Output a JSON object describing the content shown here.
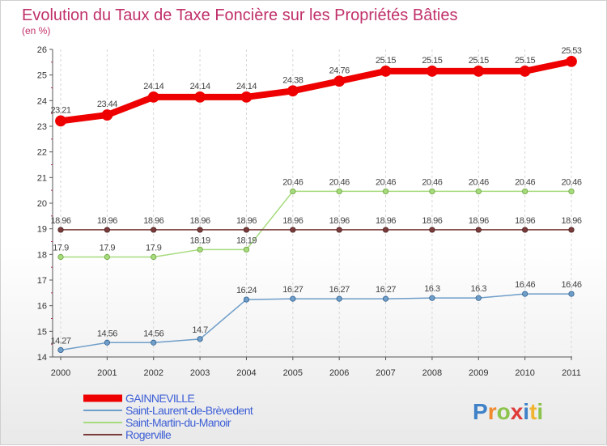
{
  "chart_data": {
    "type": "line",
    "title": "Evolution du Taux de Taxe Foncière sur les Propriétés Bâties",
    "ylabel": "(en %)",
    "xlabel": "",
    "ylim": [
      14,
      26
    ],
    "yticks": [
      14,
      15,
      16,
      17,
      18,
      19,
      20,
      21,
      22,
      23,
      24,
      25,
      26
    ],
    "categories": [
      "2000",
      "2001",
      "2002",
      "2003",
      "2004",
      "2005",
      "2006",
      "2007",
      "2008",
      "2009",
      "2010",
      "2011"
    ],
    "grid": "vertical dashed",
    "legend_position": "bottom-left",
    "series": [
      {
        "name": "GAINNEVILLE",
        "color": "#ee0000",
        "values": [
          23.21,
          23.44,
          24.14,
          24.14,
          24.14,
          24.38,
          24.76,
          25.15,
          25.15,
          25.15,
          25.15,
          25.53
        ],
        "labels": [
          "23.21",
          "23.44",
          "24.14",
          "24.14",
          "24.14",
          "24.38",
          "24.76",
          "25.15",
          "25.15",
          "25.15",
          "25.15",
          "25.53"
        ]
      },
      {
        "name": "Saint-Laurent-de-Brèvedent",
        "color": "#6f9ec9",
        "values": [
          14.27,
          14.56,
          14.56,
          14.7,
          16.24,
          16.27,
          16.27,
          16.27,
          16.3,
          16.3,
          16.46,
          16.46
        ],
        "labels": [
          "14.27",
          "14.56",
          "14.56",
          "14.7",
          "16.24",
          "16.27",
          "16.27",
          "16.27",
          "16.3",
          "16.3",
          "16.46",
          "16.46"
        ]
      },
      {
        "name": "Saint-Martin-du-Manoir",
        "color": "#a6db7e",
        "values": [
          17.9,
          17.9,
          17.9,
          18.19,
          18.19,
          20.46,
          20.46,
          20.46,
          20.46,
          20.46,
          20.46,
          20.46
        ],
        "labels": [
          "17.9",
          "17.9",
          "17.9",
          "18.19",
          "18.19",
          "20.46",
          "20.46",
          "20.46",
          "20.46",
          "20.46",
          "20.46",
          "20.46"
        ]
      },
      {
        "name": "Rogerville",
        "color": "#7a3b3b",
        "values": [
          18.96,
          18.96,
          18.96,
          18.96,
          18.96,
          18.96,
          18.96,
          18.96,
          18.96,
          18.96,
          18.96,
          18.96
        ],
        "labels": [
          "18.96",
          "18.96",
          "18.96",
          "18.96",
          "18.96",
          "18.96",
          "18.96",
          "18.96",
          "18.96",
          "18.96",
          "18.96",
          "18.96"
        ]
      }
    ]
  },
  "logo": {
    "text": "Proxiti"
  },
  "colors": {
    "title": "#c0306a",
    "legend_text": "#3d5fd6"
  }
}
